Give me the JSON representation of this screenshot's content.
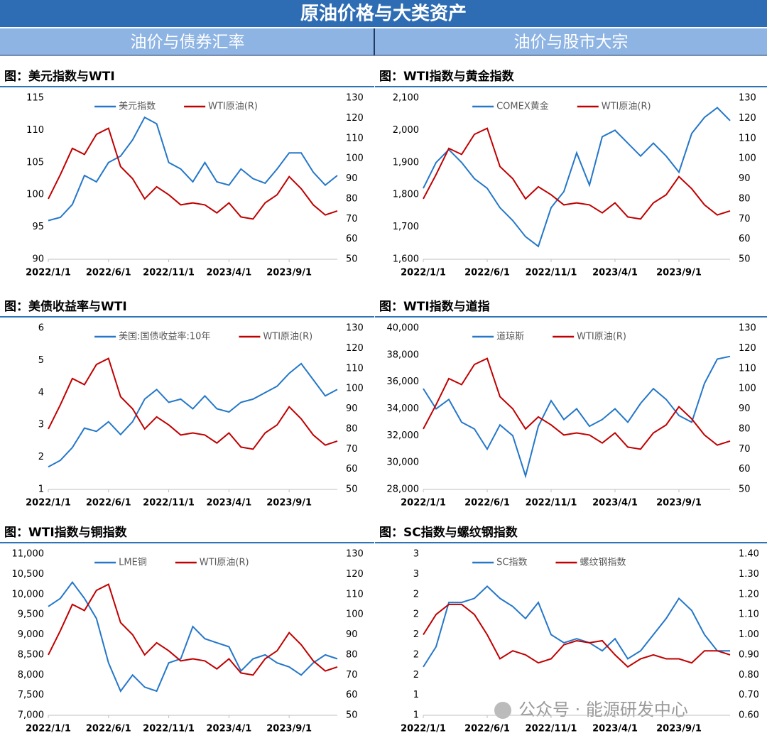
{
  "header": {
    "title": "原油价格与大类资产",
    "sections": [
      "油价与债券汇率",
      "油价与股市大宗"
    ]
  },
  "watermark": "公众号 · 能源研发中心",
  "chart_data": [
    {
      "type": "line",
      "title": "图：美元指数与WTI",
      "x": [
        "2022/1/1",
        "2022/2/1",
        "2022/3/1",
        "2022/4/1",
        "2022/5/1",
        "2022/6/1",
        "2022/7/1",
        "2022/8/1",
        "2022/9/1",
        "2022/10/1",
        "2022/11/1",
        "2022/12/1",
        "2023/1/1",
        "2023/2/1",
        "2023/3/1",
        "2023/4/1",
        "2023/5/1",
        "2023/6/1",
        "2023/7/1",
        "2023/8/1",
        "2023/9/1",
        "2023/10/1",
        "2023/11/1",
        "2023/12/1",
        "2024/1/1"
      ],
      "xticks": [
        "2022/1/1",
        "2022/6/1",
        "2022/11/1",
        "2023/4/1",
        "2023/9/1"
      ],
      "ylim": [
        90,
        115
      ],
      "yticks": [
        90,
        95,
        100,
        105,
        110,
        115
      ],
      "y2lim": [
        50,
        130
      ],
      "y2ticks": [
        50,
        60,
        70,
        80,
        90,
        100,
        110,
        120,
        130
      ],
      "series": [
        {
          "name": "美元指数",
          "color": "#2477c9",
          "values": [
            96,
            96.5,
            98.5,
            103,
            102,
            105,
            106,
            108.5,
            112,
            111,
            105,
            104,
            102,
            105,
            102,
            101.5,
            104,
            102.5,
            101.8,
            104,
            106.5,
            106.5,
            103.5,
            101.5,
            103
          ]
        },
        {
          "name": "WTI原油(R)",
          "color": "#c00000",
          "axis": "y2",
          "values": [
            80,
            92,
            105,
            102,
            112,
            115,
            96,
            90,
            80,
            86,
            82,
            77,
            78,
            77,
            73,
            78,
            71,
            70,
            78,
            82,
            91,
            85,
            77,
            72,
            74
          ]
        }
      ]
    },
    {
      "type": "line",
      "title": "图：WTI指数与黄金指数",
      "x": [
        "2022/1/1",
        "2022/2/1",
        "2022/3/1",
        "2022/4/1",
        "2022/5/1",
        "2022/6/1",
        "2022/7/1",
        "2022/8/1",
        "2022/9/1",
        "2022/10/1",
        "2022/11/1",
        "2022/12/1",
        "2023/1/1",
        "2023/2/1",
        "2023/3/1",
        "2023/4/1",
        "2023/5/1",
        "2023/6/1",
        "2023/7/1",
        "2023/8/1",
        "2023/9/1",
        "2023/10/1",
        "2023/11/1",
        "2023/12/1",
        "2024/1/1"
      ],
      "xticks": [
        "2022/1/1",
        "2022/6/1",
        "2022/11/1",
        "2023/4/1",
        "2023/9/1"
      ],
      "ylim": [
        1600,
        2100
      ],
      "yticks": [
        {
          "value": 1600,
          "label": "1,600"
        },
        {
          "value": 1700,
          "label": "1,700"
        },
        {
          "value": 1800,
          "label": "1,800"
        },
        {
          "value": 1900,
          "label": "1,900"
        },
        {
          "value": 2000,
          "label": "2,000"
        },
        {
          "value": 2100,
          "label": "2,100"
        }
      ],
      "y2lim": [
        50,
        130
      ],
      "y2ticks": [
        50,
        60,
        70,
        80,
        90,
        100,
        110,
        120,
        130
      ],
      "series": [
        {
          "name": "COMEX黄金",
          "color": "#2477c9",
          "values": [
            1820,
            1900,
            1940,
            1900,
            1850,
            1820,
            1760,
            1720,
            1670,
            1640,
            1760,
            1810,
            1930,
            1830,
            1980,
            2000,
            1960,
            1920,
            1960,
            1920,
            1870,
            1990,
            2040,
            2070,
            2030
          ]
        },
        {
          "name": "WTI原油(R)",
          "color": "#c00000",
          "axis": "y2",
          "values": [
            80,
            92,
            105,
            102,
            112,
            115,
            96,
            90,
            80,
            86,
            82,
            77,
            78,
            77,
            73,
            78,
            71,
            70,
            78,
            82,
            91,
            85,
            77,
            72,
            74
          ]
        }
      ]
    },
    {
      "type": "line",
      "title": "图：美债收益率与WTI",
      "x": [
        "2022/1/1",
        "2022/2/1",
        "2022/3/1",
        "2022/4/1",
        "2022/5/1",
        "2022/6/1",
        "2022/7/1",
        "2022/8/1",
        "2022/9/1",
        "2022/10/1",
        "2022/11/1",
        "2022/12/1",
        "2023/1/1",
        "2023/2/1",
        "2023/3/1",
        "2023/4/1",
        "2023/5/1",
        "2023/6/1",
        "2023/7/1",
        "2023/8/1",
        "2023/9/1",
        "2023/10/1",
        "2023/11/1",
        "2023/12/1",
        "2024/1/1"
      ],
      "xticks": [
        "2022/1/1",
        "2022/6/1",
        "2022/11/1",
        "2023/4/1",
        "2023/9/1"
      ],
      "ylim": [
        1,
        6
      ],
      "yticks": [
        1,
        2,
        3,
        4,
        5,
        6
      ],
      "y2lim": [
        50,
        130
      ],
      "y2ticks": [
        50,
        60,
        70,
        80,
        90,
        100,
        110,
        120,
        130
      ],
      "series": [
        {
          "name": "美国:国债收益率:10年",
          "color": "#2477c9",
          "values": [
            1.7,
            1.9,
            2.3,
            2.9,
            2.8,
            3.1,
            2.7,
            3.1,
            3.8,
            4.1,
            3.7,
            3.8,
            3.5,
            3.9,
            3.5,
            3.4,
            3.7,
            3.8,
            4.0,
            4.2,
            4.6,
            4.9,
            4.4,
            3.9,
            4.1
          ]
        },
        {
          "name": "WTI原油(R)",
          "color": "#c00000",
          "axis": "y2",
          "values": [
            80,
            92,
            105,
            102,
            112,
            115,
            96,
            90,
            80,
            86,
            82,
            77,
            78,
            77,
            73,
            78,
            71,
            70,
            78,
            82,
            91,
            85,
            77,
            72,
            74
          ]
        }
      ]
    },
    {
      "type": "line",
      "title": "图：WTI指数与道指",
      "x": [
        "2022/1/1",
        "2022/2/1",
        "2022/3/1",
        "2022/4/1",
        "2022/5/1",
        "2022/6/1",
        "2022/7/1",
        "2022/8/1",
        "2022/9/1",
        "2022/10/1",
        "2022/11/1",
        "2022/12/1",
        "2023/1/1",
        "2023/2/1",
        "2023/3/1",
        "2023/4/1",
        "2023/5/1",
        "2023/6/1",
        "2023/7/1",
        "2023/8/1",
        "2023/9/1",
        "2023/10/1",
        "2023/11/1",
        "2023/12/1",
        "2024/1/1"
      ],
      "xticks": [
        "2022/1/1",
        "2022/6/1",
        "2022/11/1",
        "2023/4/1",
        "2023/9/1"
      ],
      "ylim": [
        28000,
        40000
      ],
      "yticks": [
        {
          "value": 28000,
          "label": "28,000"
        },
        {
          "value": 30000,
          "label": "30,000"
        },
        {
          "value": 32000,
          "label": "32,000"
        },
        {
          "value": 34000,
          "label": "34,000"
        },
        {
          "value": 36000,
          "label": "36,000"
        },
        {
          "value": 38000,
          "label": "38,000"
        },
        {
          "value": 40000,
          "label": "40,000"
        }
      ],
      "y2lim": [
        50,
        130
      ],
      "y2ticks": [
        50,
        60,
        70,
        80,
        90,
        100,
        110,
        120,
        130
      ],
      "series": [
        {
          "name": "道琼斯",
          "color": "#2477c9",
          "values": [
            35500,
            34000,
            34700,
            33000,
            32500,
            31000,
            32800,
            32000,
            29000,
            32700,
            34600,
            33200,
            34000,
            32700,
            33200,
            34000,
            33000,
            34400,
            35500,
            34700,
            33500,
            33000,
            35900,
            37700,
            37900
          ]
        },
        {
          "name": "WTI原油(R)",
          "color": "#c00000",
          "axis": "y2",
          "values": [
            80,
            92,
            105,
            102,
            112,
            115,
            96,
            90,
            80,
            86,
            82,
            77,
            78,
            77,
            73,
            78,
            71,
            70,
            78,
            82,
            91,
            85,
            77,
            72,
            74
          ]
        }
      ]
    },
    {
      "type": "line",
      "title": "图：WTI指数与铜指数",
      "x": [
        "2022/1/1",
        "2022/2/1",
        "2022/3/1",
        "2022/4/1",
        "2022/5/1",
        "2022/6/1",
        "2022/7/1",
        "2022/8/1",
        "2022/9/1",
        "2022/10/1",
        "2022/11/1",
        "2022/12/1",
        "2023/1/1",
        "2023/2/1",
        "2023/3/1",
        "2023/4/1",
        "2023/5/1",
        "2023/6/1",
        "2023/7/1",
        "2023/8/1",
        "2023/9/1",
        "2023/10/1",
        "2023/11/1",
        "2023/12/1",
        "2024/1/1"
      ],
      "xticks": [
        "2022/1/1",
        "2022/6/1",
        "2022/11/1",
        "2023/4/1",
        "2023/9/1"
      ],
      "ylim": [
        7000,
        11000
      ],
      "yticks": [
        {
          "value": 7000,
          "label": "7,000"
        },
        {
          "value": 7500,
          "label": "7,500"
        },
        {
          "value": 8000,
          "label": "8,000"
        },
        {
          "value": 8500,
          "label": "8,500"
        },
        {
          "value": 9000,
          "label": "9,000"
        },
        {
          "value": 9500,
          "label": "9,500"
        },
        {
          "value": 10000,
          "label": "10,000"
        },
        {
          "value": 10500,
          "label": "10,500"
        },
        {
          "value": 11000,
          "label": "11,000"
        }
      ],
      "y2lim": [
        50,
        130
      ],
      "y2ticks": [
        50,
        60,
        70,
        80,
        90,
        100,
        110,
        120,
        130
      ],
      "series": [
        {
          "name": "LME铜",
          "color": "#2477c9",
          "values": [
            9700,
            9900,
            10300,
            9900,
            9400,
            8300,
            7600,
            8000,
            7700,
            7600,
            8300,
            8400,
            9200,
            8900,
            8800,
            8700,
            8100,
            8400,
            8500,
            8300,
            8200,
            8000,
            8300,
            8500,
            8400
          ]
        },
        {
          "name": "WTI原油(R)",
          "color": "#c00000",
          "axis": "y2",
          "values": [
            80,
            92,
            105,
            102,
            112,
            115,
            96,
            90,
            80,
            86,
            82,
            77,
            78,
            77,
            73,
            78,
            71,
            70,
            78,
            82,
            91,
            85,
            77,
            72,
            74
          ]
        }
      ]
    },
    {
      "type": "line",
      "title": "图：SC指数与螺纹钢指数",
      "x": [
        "2022/1/1",
        "2022/2/1",
        "2022/3/1",
        "2022/4/1",
        "2022/5/1",
        "2022/6/1",
        "2022/7/1",
        "2022/8/1",
        "2022/9/1",
        "2022/10/1",
        "2022/11/1",
        "2022/12/1",
        "2023/1/1",
        "2023/2/1",
        "2023/3/1",
        "2023/4/1",
        "2023/5/1",
        "2023/6/1",
        "2023/7/1",
        "2023/8/1",
        "2023/9/1",
        "2023/10/1",
        "2023/11/1",
        "2023/12/1",
        "2024/1/1"
      ],
      "xticks": [
        "2022/1/1",
        "2022/6/1",
        "2022/11/1",
        "2023/4/1",
        "2023/9/1"
      ],
      "ylim": [
        1,
        3
      ],
      "yticks": [
        {
          "value": 1,
          "label": "1"
        },
        {
          "value": 1.25,
          "label": "1"
        },
        {
          "value": 1.5,
          "label": "2"
        },
        {
          "value": 1.75,
          "label": "2"
        },
        {
          "value": 2,
          "label": "2"
        },
        {
          "value": 2.25,
          "label": "2"
        },
        {
          "value": 2.5,
          "label": "2"
        },
        {
          "value": 2.75,
          "label": "3"
        },
        {
          "value": 3,
          "label": "3"
        }
      ],
      "y2lim": [
        0.6,
        1.4
      ],
      "y2ticks": [
        {
          "value": 0.6,
          "label": "0.60"
        },
        {
          "value": 0.7,
          "label": "0.70"
        },
        {
          "value": 0.8,
          "label": "0.80"
        },
        {
          "value": 0.9,
          "label": "0.90"
        },
        {
          "value": 1,
          "label": "1.00"
        },
        {
          "value": 1.1,
          "label": "1.10"
        },
        {
          "value": 1.2,
          "label": "1.20"
        },
        {
          "value": 1.3,
          "label": "1.30"
        },
        {
          "value": 1.4,
          "label": "1.40"
        }
      ],
      "series": [
        {
          "name": "SC指数",
          "color": "#2477c9",
          "values": [
            1.6,
            1.85,
            2.4,
            2.4,
            2.45,
            2.6,
            2.45,
            2.35,
            2.2,
            2.4,
            2.0,
            1.9,
            1.95,
            1.9,
            1.8,
            1.95,
            1.7,
            1.8,
            2.0,
            2.2,
            2.45,
            2.3,
            2.0,
            1.8,
            1.8
          ]
        },
        {
          "name": "螺纹钢指数",
          "color": "#c00000",
          "axis": "y2",
          "values": [
            1.0,
            1.1,
            1.15,
            1.15,
            1.1,
            1.0,
            0.88,
            0.92,
            0.9,
            0.86,
            0.88,
            0.95,
            0.97,
            0.96,
            0.97,
            0.9,
            0.84,
            0.88,
            0.9,
            0.88,
            0.88,
            0.86,
            0.92,
            0.92,
            0.9
          ]
        }
      ]
    }
  ]
}
